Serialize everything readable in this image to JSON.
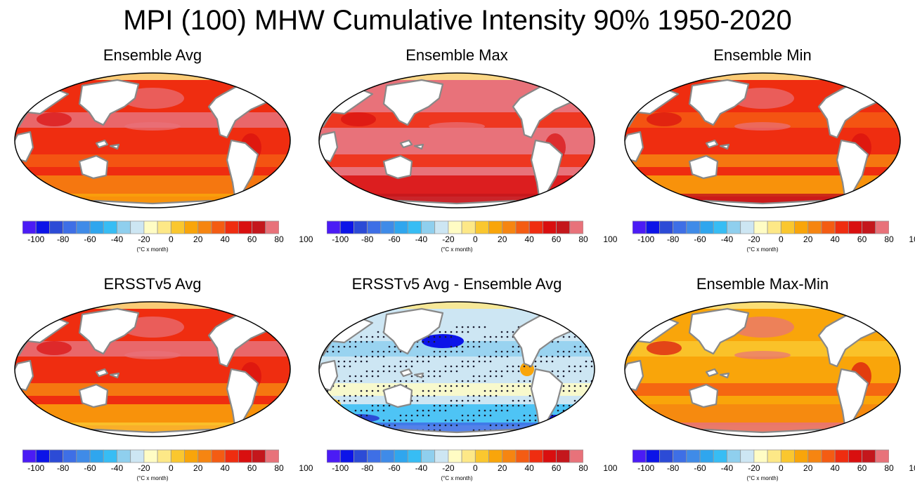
{
  "title": "MPI (100) MHW Cumulative Intensity 90% 1950-2020",
  "panels": [
    {
      "id": "ensemble-avg",
      "title": "Ensemble Avg",
      "scheme": "avg"
    },
    {
      "id": "ensemble-max",
      "title": "Ensemble Max",
      "scheme": "max"
    },
    {
      "id": "ensemble-min",
      "title": "Ensemble Min",
      "scheme": "min"
    },
    {
      "id": "ersstv5-avg",
      "title": "ERSSTv5 Avg",
      "scheme": "obs"
    },
    {
      "id": "ersstv5-minus-ensemble",
      "title": "ERSSTv5 Avg - Ensemble Avg",
      "scheme": "diff"
    },
    {
      "id": "ensemble-max-min",
      "title": "Ensemble Max-Min",
      "scheme": "range"
    }
  ],
  "colorbar": {
    "colors": [
      "#4b1bf5",
      "#0c14e8",
      "#2c4bd6",
      "#3e6fe6",
      "#3f8be8",
      "#2fa6ee",
      "#37bdf4",
      "#8fcfee",
      "#cde6f3",
      "#fffcc4",
      "#fde887",
      "#fac72f",
      "#f9a50a",
      "#f68511",
      "#f45c13",
      "#ef2d10",
      "#d90f0f",
      "#c4171c",
      "#e8727a"
    ],
    "tick_labels": [
      "-100",
      "-80",
      "-60",
      "-40",
      "-20",
      "0",
      "20",
      "40",
      "60",
      "80",
      "100"
    ],
    "unit_label": "(°C x month)"
  },
  "colors": {
    "land": "#ffffff",
    "coast": "#888888",
    "border": "#000000"
  }
}
